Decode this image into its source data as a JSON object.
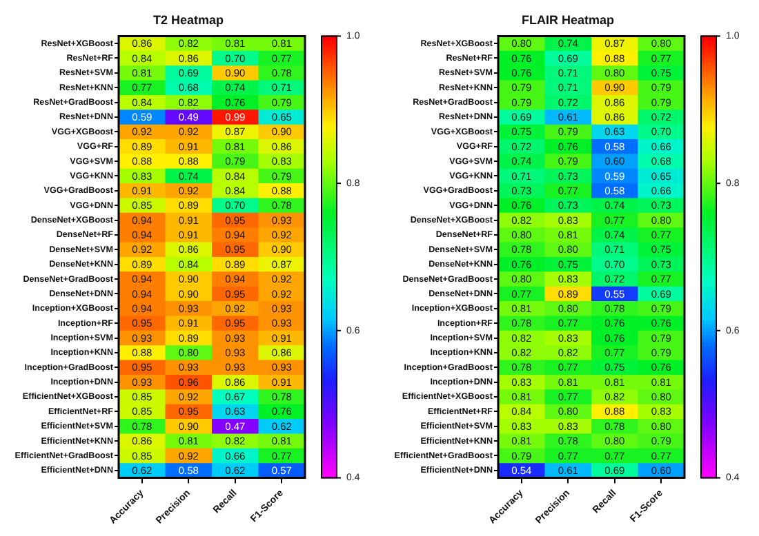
{
  "chart_data": [
    {
      "type": "heatmap",
      "title": "T2 Heatmap",
      "categories": [
        "Accuracy",
        "Precision",
        "Recall",
        "F1-Score"
      ],
      "y_categories": [
        "ResNet+XGBoost",
        "ResNet+RF",
        "ResNet+SVM",
        "ResNet+KNN",
        "ResNet+GradBoost",
        "ResNet+DNN",
        "VGG+XGBoost",
        "VGG+RF",
        "VGG+SVM",
        "VGG+KNN",
        "VGG+GradBoost",
        "VGG+DNN",
        "DenseNet+XGBoost",
        "DenseNet+RF",
        "DenseNet+SVM",
        "DenseNet+KNN",
        "DenseNet+GradBoost",
        "DenseNet+DNN",
        "Inception+XGBoost",
        "Inception+RF",
        "Inception+SVM",
        "Inception+KNN",
        "Inception+GradBoost",
        "Inception+DNN",
        "EfficientNet+XGBoost",
        "EfficientNet+RF",
        "EfficientNet+SVM",
        "EfficientNet+KNN",
        "EfficientNet+GradBoost",
        "EfficientNet+DNN"
      ],
      "cells": [
        [
          0.86,
          0.82,
          0.81,
          0.81
        ],
        [
          0.84,
          0.86,
          0.7,
          0.77
        ],
        [
          0.81,
          0.69,
          0.9,
          0.78
        ],
        [
          0.77,
          0.68,
          0.74,
          0.71
        ],
        [
          0.84,
          0.82,
          0.76,
          0.79
        ],
        [
          0.59,
          0.49,
          0.99,
          0.65
        ],
        [
          0.92,
          0.92,
          0.87,
          0.9
        ],
        [
          0.89,
          0.91,
          0.81,
          0.86
        ],
        [
          0.88,
          0.88,
          0.79,
          0.83
        ],
        [
          0.83,
          0.74,
          0.84,
          0.79
        ],
        [
          0.91,
          0.92,
          0.84,
          0.88
        ],
        [
          0.85,
          0.89,
          0.7,
          0.78
        ],
        [
          0.94,
          0.91,
          0.95,
          0.93
        ],
        [
          0.94,
          0.91,
          0.94,
          0.92
        ],
        [
          0.92,
          0.86,
          0.95,
          0.9
        ],
        [
          0.89,
          0.84,
          0.89,
          0.87
        ],
        [
          0.94,
          0.9,
          0.94,
          0.92
        ],
        [
          0.94,
          0.9,
          0.95,
          0.92
        ],
        [
          0.94,
          0.93,
          0.92,
          0.93
        ],
        [
          0.95,
          0.91,
          0.95,
          0.93
        ],
        [
          0.93,
          0.89,
          0.93,
          0.91
        ],
        [
          0.88,
          0.8,
          0.93,
          0.86
        ],
        [
          0.95,
          0.93,
          0.93,
          0.93
        ],
        [
          0.93,
          0.96,
          0.86,
          0.91
        ],
        [
          0.85,
          0.92,
          0.67,
          0.78
        ],
        [
          0.85,
          0.95,
          0.63,
          0.76
        ],
        [
          0.78,
          0.9,
          0.47,
          0.62
        ],
        [
          0.86,
          0.81,
          0.82,
          0.81
        ],
        [
          0.85,
          0.92,
          0.66,
          0.77
        ],
        [
          0.62,
          0.58,
          0.62,
          0.57
        ]
      ],
      "cell_labels": [
        [
          "0.86",
          "0.82",
          "0.81",
          "0.81"
        ],
        [
          "0.84",
          "0.86",
          "0.70",
          "0.77"
        ],
        [
          "0.81",
          "0.69",
          "0.90",
          "0.78"
        ],
        [
          "0.77",
          "0.68",
          "0.74",
          "0.71"
        ],
        [
          "0.84",
          "0.82",
          "0.76",
          "0.79"
        ],
        [
          "0.59",
          "0.49",
          "0.99",
          "0.65"
        ],
        [
          "0.92",
          "0.92",
          "0.87",
          "0.90"
        ],
        [
          "0.89",
          "0.91",
          "0.81",
          "0.86"
        ],
        [
          "0.88",
          "0.88",
          "0.79",
          "0.83"
        ],
        [
          "0.83",
          "0.74",
          "0.84",
          "0.79"
        ],
        [
          "0.91",
          "0.92",
          "0.84",
          "0.88"
        ],
        [
          "0.85",
          "0.89",
          "0.70",
          "0.78"
        ],
        [
          "0.94",
          "0.91",
          "0.95",
          "0.93"
        ],
        [
          "0.94",
          "0.91",
          "0.94",
          "0.92"
        ],
        [
          "0.92",
          "0.86",
          "0.95",
          "0.90"
        ],
        [
          "0.89",
          "0.84",
          "0.89",
          "0.87"
        ],
        [
          "0.94",
          "0.90",
          "0.94",
          "0.92"
        ],
        [
          "0.94",
          "0.90",
          "0.95",
          "0.92"
        ],
        [
          "0.94",
          "0.93",
          "0.92",
          "0.93"
        ],
        [
          "0.95",
          "0.91",
          "0.95",
          "0.93"
        ],
        [
          "0.93",
          "0.89",
          "0.93",
          "0.91"
        ],
        [
          "0.88",
          "0.80",
          "0.93",
          "0.86"
        ],
        [
          "0.95",
          "0.93",
          "0.93",
          "0.93"
        ],
        [
          "0.93",
          "0.96",
          "0.86",
          "0.91"
        ],
        [
          "0.85",
          "0.92",
          "0.67",
          "0.78"
        ],
        [
          "0.85",
          "0.95",
          "0.63",
          "0.76"
        ],
        [
          "0.78",
          "0.90",
          "0.47",
          "0.62"
        ],
        [
          "0.86",
          "0.81",
          "0.82",
          "0.81"
        ],
        [
          "0.85",
          "0.92",
          "0.66",
          "0.77"
        ],
        [
          "0.62",
          "0.58",
          "0.62",
          "0.57"
        ]
      ],
      "clim": [
        0.4,
        1.0
      ],
      "cticks": [
        0.4,
        0.6,
        0.8,
        {
          "value": 1.0,
          "label": "1.0"
        }
      ],
      "data_labels": true
    },
    {
      "type": "heatmap",
      "title": "FLAIR Heatmap",
      "categories": [
        "Accuracy",
        "Precision",
        "Recall",
        "F1-Score"
      ],
      "y_categories": [
        "ResNet+XGBoost",
        "ResNet+RF",
        "ResNet+SVM",
        "ResNet+KNN",
        "ResNet+GradBoost",
        "ResNet+DNN",
        "VGG+XGBoost",
        "VGG+RF",
        "VGG+SVM",
        "VGG+KNN",
        "VGG+GradBoost",
        "VGG+DNN",
        "DenseNet+XGBoost",
        "DenseNet+RF",
        "DenseNet+SVM",
        "DenseNet+KNN",
        "DenseNet+GradBoost",
        "DenseNet+DNN",
        "Inception+XGBoost",
        "Inception+RF",
        "Inception+SVM",
        "Inception+KNN",
        "Inception+GradBoost",
        "Inception+DNN",
        "EfficientNet+XGBoost",
        "EfficientNet+RF",
        "EfficientNet+SVM",
        "EfficientNet+KNN",
        "EfficientNet+GradBoost",
        "EfficientNet+DNN"
      ],
      "cells": [
        [
          0.8,
          0.74,
          0.87,
          0.8
        ],
        [
          0.76,
          0.69,
          0.88,
          0.77
        ],
        [
          0.76,
          0.71,
          0.8,
          0.75
        ],
        [
          0.79,
          0.71,
          0.9,
          0.79
        ],
        [
          0.79,
          0.72,
          0.86,
          0.79
        ],
        [
          0.69,
          0.61,
          0.86,
          0.72
        ],
        [
          0.75,
          0.79,
          0.63,
          0.7
        ],
        [
          0.72,
          0.76,
          0.58,
          0.66
        ],
        [
          0.74,
          0.79,
          0.6,
          0.68
        ],
        [
          0.71,
          0.73,
          0.59,
          0.65
        ],
        [
          0.73,
          0.77,
          0.58,
          0.66
        ],
        [
          0.76,
          0.73,
          0.74,
          0.73
        ],
        [
          0.82,
          0.83,
          0.77,
          0.8
        ],
        [
          0.8,
          0.81,
          0.74,
          0.77
        ],
        [
          0.78,
          0.8,
          0.71,
          0.75
        ],
        [
          0.76,
          0.75,
          0.7,
          0.73
        ],
        [
          0.8,
          0.83,
          0.72,
          0.77
        ],
        [
          0.77,
          0.89,
          0.55,
          0.69
        ],
        [
          0.81,
          0.8,
          0.78,
          0.79
        ],
        [
          0.78,
          0.77,
          0.76,
          0.76
        ],
        [
          0.82,
          0.83,
          0.76,
          0.79
        ],
        [
          0.82,
          0.82,
          0.77,
          0.79
        ],
        [
          0.78,
          0.77,
          0.75,
          0.76
        ],
        [
          0.83,
          0.81,
          0.81,
          0.81
        ],
        [
          0.81,
          0.77,
          0.82,
          0.8
        ],
        [
          0.84,
          0.8,
          0.88,
          0.83
        ],
        [
          0.83,
          0.83,
          0.78,
          0.8
        ],
        [
          0.81,
          0.78,
          0.8,
          0.79
        ],
        [
          0.79,
          0.77,
          0.77,
          0.77
        ],
        [
          0.54,
          0.61,
          0.69,
          0.6
        ]
      ],
      "cell_labels": [
        [
          "0.80",
          "0.74",
          "0.87",
          "0.80"
        ],
        [
          "0.76",
          "0.69",
          "0.88",
          "0.77"
        ],
        [
          "0.76",
          "0.71",
          "0.80",
          "0.75"
        ],
        [
          "0.79",
          "0.71",
          "0.90",
          "0.79"
        ],
        [
          "0.79",
          "0.72",
          "0.86",
          "0.79"
        ],
        [
          "0.69",
          "0.61",
          "0.86",
          "0.72"
        ],
        [
          "0.75",
          "0.79",
          "0.63",
          "0.70"
        ],
        [
          "0.72",
          "0.76",
          "0.58",
          "0.66"
        ],
        [
          "0.74",
          "0.79",
          "0.60",
          "0.68"
        ],
        [
          "0.71",
          "0.73",
          "0.59",
          "0.65"
        ],
        [
          "0.73",
          "0.77",
          "0.58",
          "0.66"
        ],
        [
          "0.76",
          "0.73",
          "0.74",
          "0.73"
        ],
        [
          "0.82",
          "0.83",
          "0.77",
          "0.80"
        ],
        [
          "0.80",
          "0.81",
          "0.74",
          "0.77"
        ],
        [
          "0.78",
          "0.80",
          "0.71",
          "0.75"
        ],
        [
          "0.76",
          "0.75",
          "0.70",
          "0.73"
        ],
        [
          "0.80",
          "0.83",
          "0.72",
          "0.77"
        ],
        [
          "0.77",
          "0.89",
          "0.55",
          "0.69"
        ],
        [
          "0.81",
          "0.80",
          "0.78",
          "0.79"
        ],
        [
          "0.78",
          "0.77",
          "0.76",
          "0.76"
        ],
        [
          "0.82",
          "0.83",
          "0.76",
          "0.79"
        ],
        [
          "0.82",
          "0.82",
          "0.77",
          "0.79"
        ],
        [
          "0.78",
          "0.77",
          "0.75",
          "0.76"
        ],
        [
          "0.83",
          "0.81",
          "0.81",
          "0.81"
        ],
        [
          "0.81",
          "0.77",
          "0.82",
          "0.80"
        ],
        [
          "0.84",
          "0.80",
          "0.88",
          "0.83"
        ],
        [
          "0.83",
          "0.83",
          "0.78",
          "0.80"
        ],
        [
          "0.81",
          "0.78",
          "0.80",
          "0.79"
        ],
        [
          "0.79",
          "0.77",
          "0.77",
          "0.77"
        ],
        [
          "0.54",
          "0.61",
          "0.69",
          "0.60"
        ]
      ],
      "clim": [
        0.4,
        1.0
      ],
      "cticks": [
        0.4,
        0.6,
        0.8,
        {
          "value": 1.0,
          "label": "1.0"
        }
      ],
      "data_labels": true
    }
  ]
}
